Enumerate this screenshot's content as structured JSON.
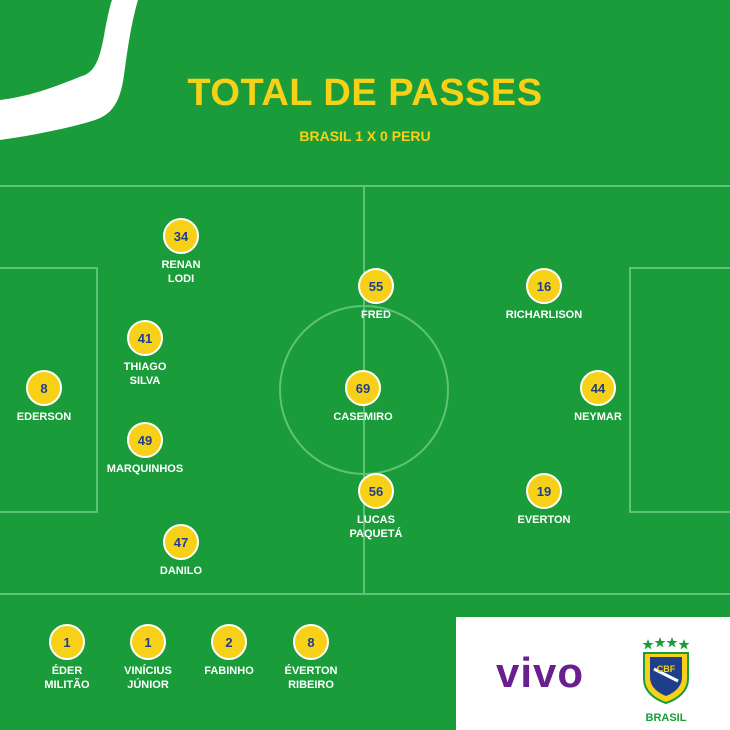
{
  "title": "TOTAL DE PASSES",
  "subtitle": "BRASIL 1 X 0 PERU",
  "colors": {
    "field": "#1a9c3a",
    "lines": "#5fc277",
    "badge": "#f7d117",
    "badge_text": "#1f3f8c",
    "vivo": "#6a1f8f"
  },
  "starters": [
    {
      "number": "34",
      "name": "RENAN\nLODI"
    },
    {
      "number": "41",
      "name": "THIAGO\nSILVA"
    },
    {
      "number": "8",
      "name": "EDERSON"
    },
    {
      "number": "49",
      "name": "MARQUINHOS"
    },
    {
      "number": "47",
      "name": "DANILO"
    },
    {
      "number": "55",
      "name": "FRED"
    },
    {
      "number": "69",
      "name": "CASEMIRO"
    },
    {
      "number": "56",
      "name": "LUCAS\nPAQUETÁ"
    },
    {
      "number": "16",
      "name": "RICHARLISON"
    },
    {
      "number": "44",
      "name": "NEYMAR"
    },
    {
      "number": "19",
      "name": "EVERTON"
    }
  ],
  "substitutes": [
    {
      "number": "1",
      "name": "ÉDER\nMILITÃO"
    },
    {
      "number": "1",
      "name": "VINÍCIUS\nJÚNIOR"
    },
    {
      "number": "2",
      "name": "FABINHO"
    },
    {
      "number": "8",
      "name": "ÉVERTON\nRIBEIRO"
    }
  ],
  "sponsor": {
    "logo_text": "vivo",
    "icon": "vivo-logo"
  },
  "crest": {
    "label": "BRASIL",
    "icon": "cbf-crest-icon",
    "text": "CBF"
  }
}
